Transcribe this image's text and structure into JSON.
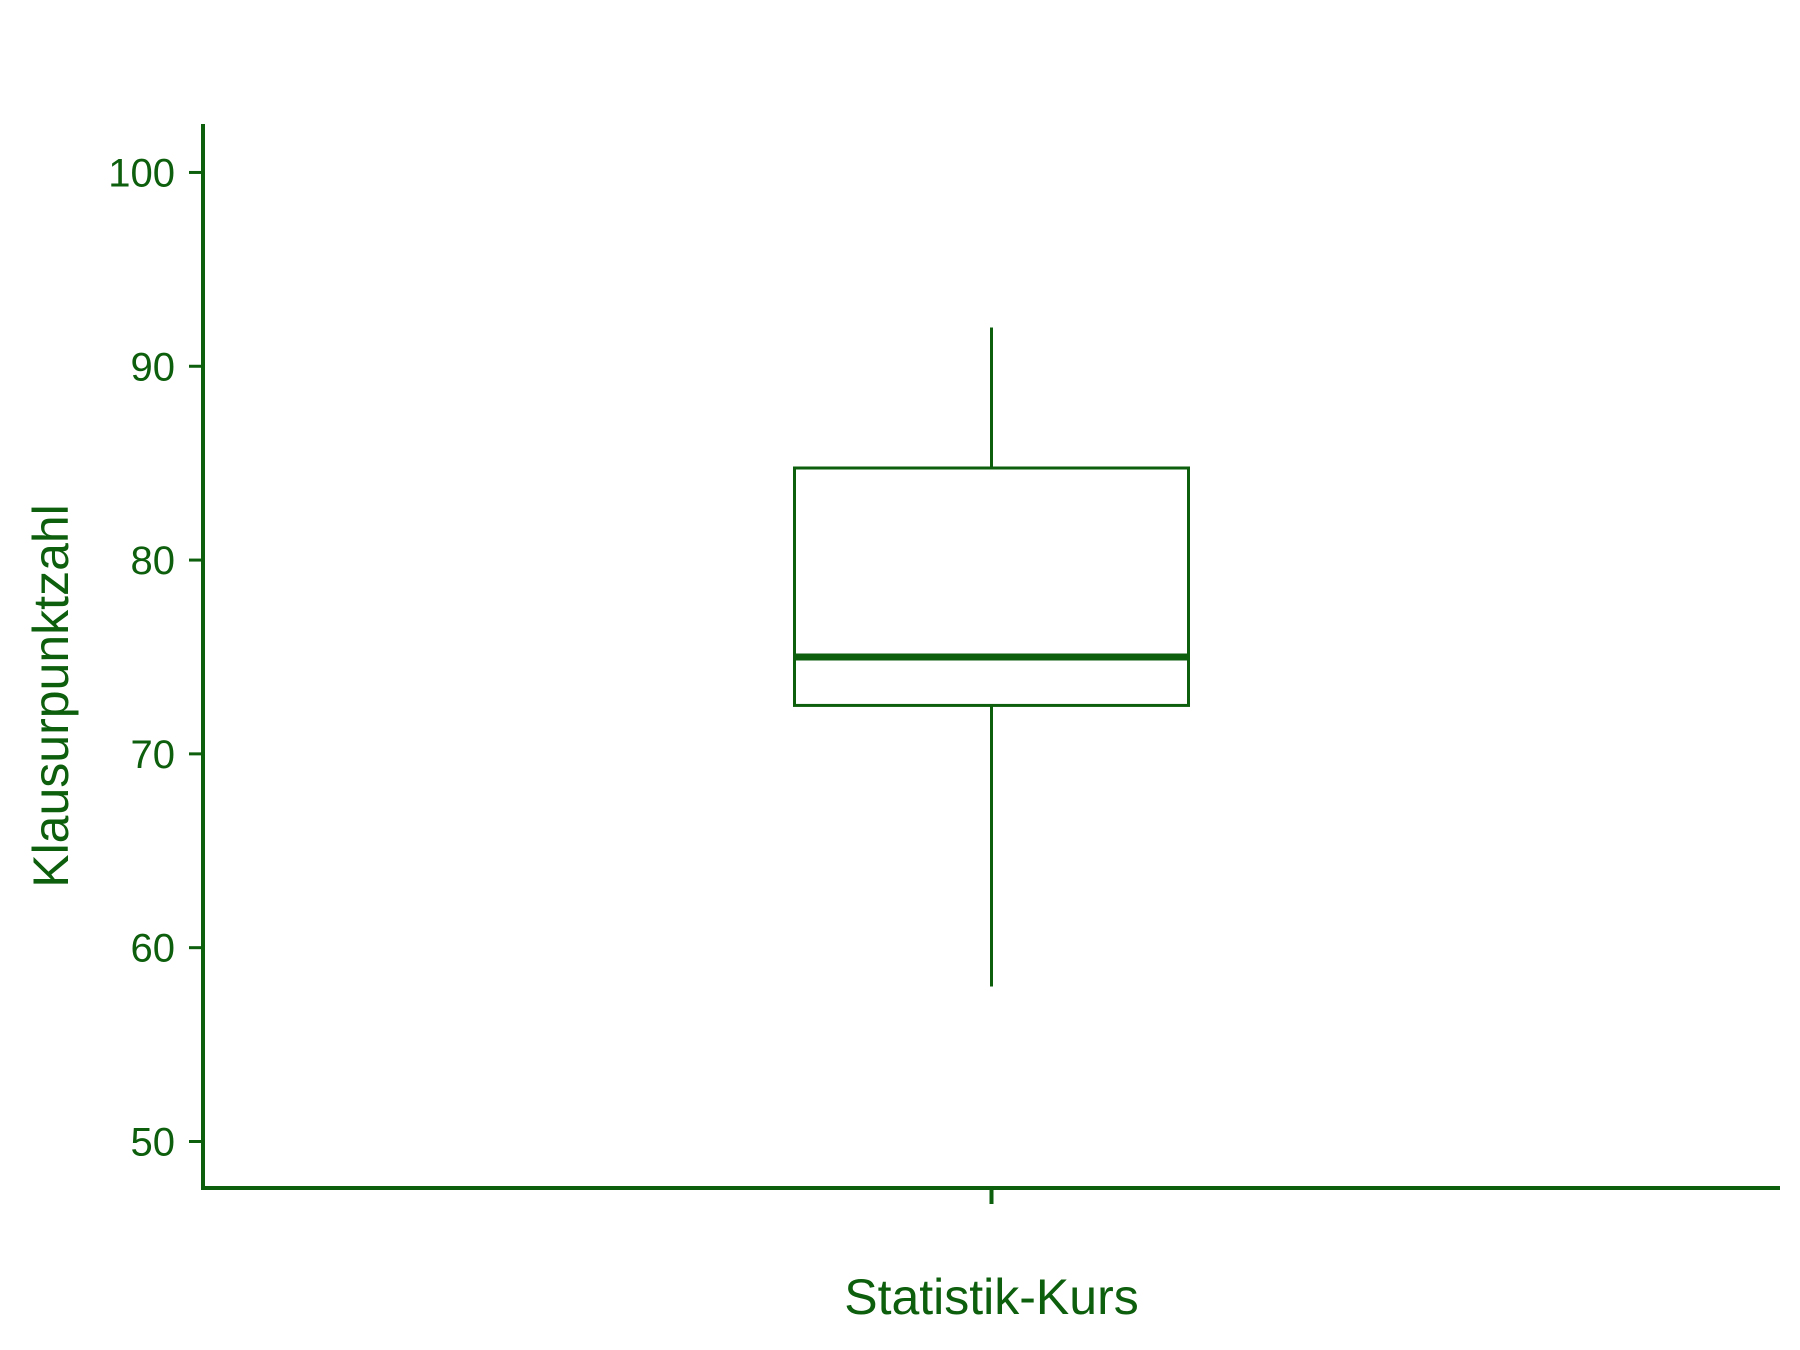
{
  "chart_data": {
    "type": "boxplot",
    "title": "",
    "xlabel": "Statistik-Kurs",
    "ylabel": "Klausurpunktzahl",
    "ylim": [
      47.6,
      102.5
    ],
    "yticks": [
      50,
      60,
      70,
      80,
      90,
      100
    ],
    "grid": false,
    "legend": "none",
    "color": "#0d5e0d",
    "categories": [
      ""
    ],
    "boxes": [
      {
        "category": "",
        "whisker_low": 58,
        "q1": 72.5,
        "median": 75,
        "q3": 84.75,
        "whisker_high": 92
      }
    ]
  }
}
